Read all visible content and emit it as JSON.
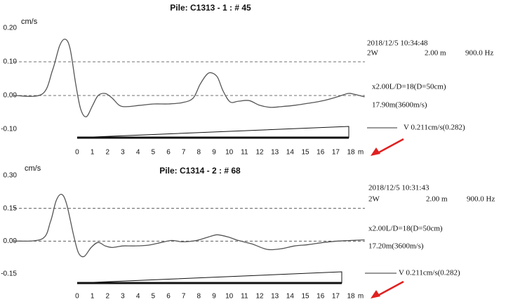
{
  "chart_data": [
    {
      "type": "line",
      "title": "Pile: C1313 - 1 : # 45",
      "y_label": "cm/s",
      "x_label": "m",
      "timestamp": "2018/12/5 10:34:48",
      "info": [
        "2W",
        "2.00 m",
        "900.0 Hz"
      ],
      "gain": "x2.00L/D=18(D=50cm)",
      "length": "17.90m(3600m/s)",
      "velocity": "V 0.211cm/s(0.282)",
      "color": "#555555",
      "xlim": [
        -4.15,
        18.92
      ],
      "xticks": [
        0,
        1,
        2,
        3,
        4,
        5,
        6,
        7,
        8,
        9,
        10,
        11,
        12,
        13,
        14,
        15,
        16,
        17,
        18
      ],
      "ylim": [
        -0.1,
        0.2
      ],
      "yticks": [
        {
          "value": 0.2,
          "label": "0.20"
        },
        {
          "value": 0.1,
          "label": "0.10"
        },
        {
          "value": 0,
          "label": "0.00"
        },
        {
          "value": -0.1,
          "label": "-0.10"
        }
      ],
      "reference_lines": [
        0.1,
        0
      ],
      "x": [
        -4.15,
        -2.31,
        -1.62,
        -1.15,
        -0.78,
        -0.46,
        -0.09,
        0.23,
        0.6,
        1.02,
        1.38,
        1.85,
        2.31,
        2.77,
        3.23,
        4.15,
        5.08,
        6.0,
        6.92,
        7.62,
        8.08,
        8.54,
        8.86,
        9.23,
        9.6,
        10.06,
        10.6,
        11.3,
        12.0,
        12.7,
        13.4,
        14.3,
        15.2,
        16.2,
        17.1,
        17.8,
        18.2,
        18.9
      ],
      "values": [
        0,
        0.004,
        0.075,
        0.148,
        0.167,
        0.138,
        0.033,
        -0.04,
        -0.063,
        -0.029,
        0,
        0.006,
        -0.008,
        -0.029,
        -0.033,
        -0.029,
        -0.025,
        -0.025,
        -0.021,
        -0.008,
        0.033,
        0.063,
        0.067,
        0.054,
        0.013,
        -0.019,
        -0.017,
        -0.015,
        -0.029,
        -0.035,
        -0.033,
        -0.029,
        -0.023,
        -0.015,
        -0.004,
        0.006,
        0.004,
        -0.004
      ]
    },
    {
      "type": "line",
      "title": "Pile: C1314 - 2 : # 68",
      "y_label": "cm/s",
      "x_label": "m",
      "timestamp": "2018/12/5 10:31:43",
      "info": [
        "2W",
        "2.00 m",
        "900.0 Hz"
      ],
      "gain": "x2.00L/D=18(D=50cm)",
      "length": "17.20m(3600m/s)",
      "velocity": "V 0.211cm/s(0.282)",
      "color": "#555555",
      "xlim": [
        -4.15,
        18.92
      ],
      "xticks": [
        0,
        1,
        2,
        3,
        4,
        5,
        6,
        7,
        8,
        9,
        10,
        11,
        12,
        13,
        14,
        15,
        16,
        17,
        18
      ],
      "ylim": [
        -0.15,
        0.3
      ],
      "yticks": [
        {
          "value": 0.3,
          "label": "0.30"
        },
        {
          "value": 0.15,
          "label": "0.15"
        },
        {
          "value": 0,
          "label": "0.00"
        },
        {
          "value": -0.15,
          "label": "-0.15"
        }
      ],
      "reference_lines": [
        0.15,
        0
      ],
      "x": [
        -4.15,
        -2.31,
        -1.75,
        -1.38,
        -1.02,
        -0.69,
        -0.23,
        0.09,
        0.46,
        0.92,
        1.38,
        1.85,
        2.31,
        3.0,
        3.69,
        4.62,
        5.54,
        6.23,
        6.92,
        7.85,
        8.77,
        9.23,
        9.92,
        10.6,
        11.5,
        12.5,
        13.4,
        14.3,
        15.2,
        16.2,
        17.1,
        18.0,
        18.9
      ],
      "values": [
        0,
        0.01,
        0.09,
        0.185,
        0.214,
        0.169,
        0.026,
        -0.054,
        -0.07,
        -0.029,
        -0.006,
        -0.022,
        -0.029,
        -0.022,
        -0.022,
        -0.019,
        -0.006,
        0.003,
        -0.003,
        0.003,
        0.022,
        0.029,
        0.019,
        0.003,
        -0.013,
        -0.038,
        -0.035,
        -0.022,
        -0.016,
        -0.006,
        0,
        0.003,
        0.006
      ]
    }
  ]
}
